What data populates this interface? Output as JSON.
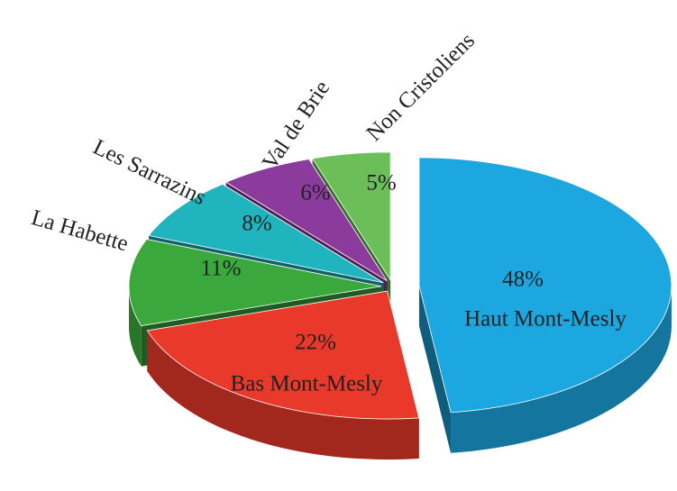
{
  "chart_data": {
    "type": "pie",
    "categories": [
      "Haut Mont-Mesly",
      "Bas Mont-Mesly",
      "La Habette",
      "Les Sarrazins",
      "Val de Brie",
      "Non Cristoliens"
    ],
    "values": [
      48,
      22,
      11,
      8,
      6,
      5
    ],
    "value_labels": [
      "48%",
      "22%",
      "11%",
      "8%",
      "6%",
      "5%"
    ],
    "colors": [
      "#1ca7e1",
      "#e8392a",
      "#3aa83c",
      "#20b4bf",
      "#8b3b9b",
      "#6cbf58"
    ]
  }
}
